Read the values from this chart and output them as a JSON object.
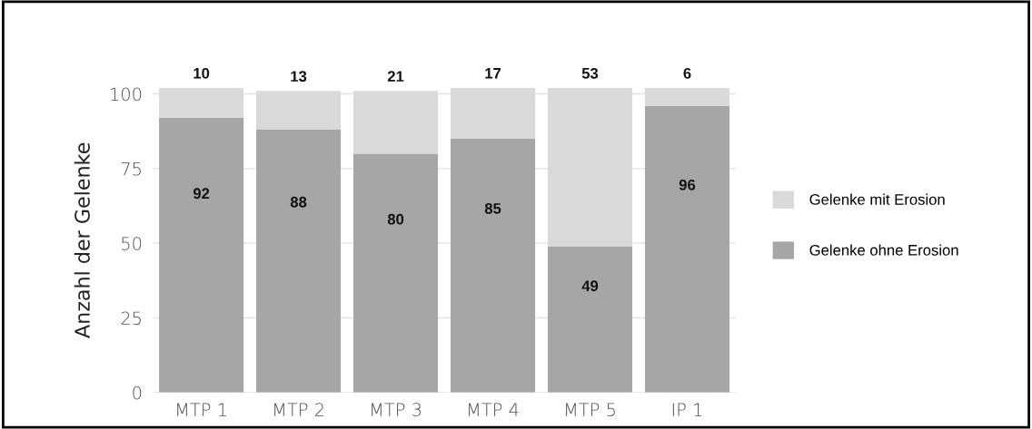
{
  "chart_data": {
    "type": "bar",
    "stacked": true,
    "categories": [
      "MTP 1",
      "MTP 2",
      "MTP 3",
      "MTP 4",
      "MTP 5",
      "IP 1"
    ],
    "series": [
      {
        "name": "Gelenke ohne Erosion",
        "color": "#a6a6a6",
        "values": [
          92,
          88,
          80,
          85,
          49,
          96
        ]
      },
      {
        "name": "Gelenke mit Erosion",
        "color": "#d9d9d9",
        "values": [
          10,
          13,
          21,
          17,
          53,
          6
        ]
      }
    ],
    "ylabel": "Anzahl der Gelenke",
    "ylim": [
      0,
      102
    ],
    "yticks": [
      0,
      25,
      50,
      75,
      100
    ],
    "grid": "y",
    "legend": "right",
    "data_labels": true
  }
}
